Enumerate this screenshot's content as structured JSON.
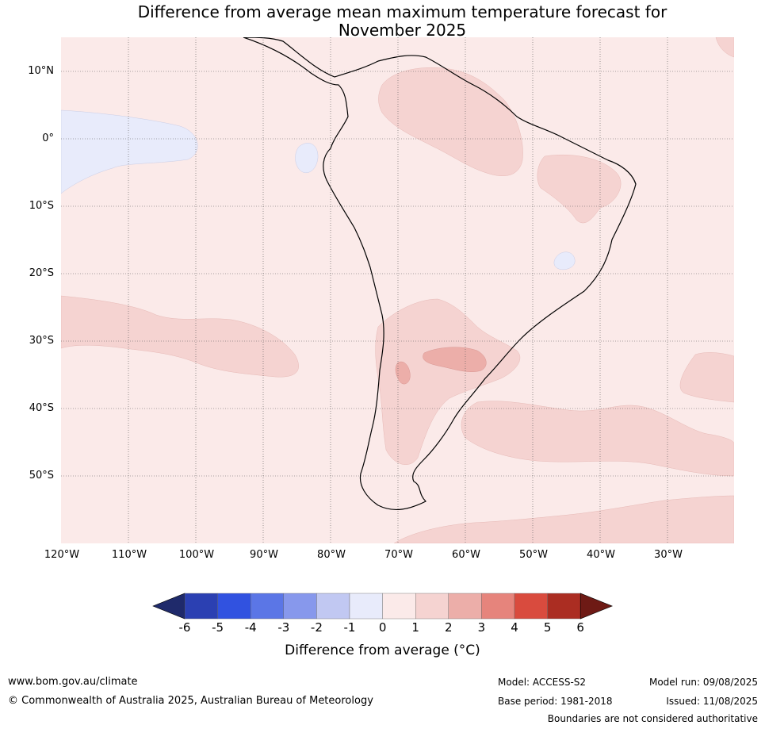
{
  "title": {
    "line1": "Difference from average mean maximum temperature forecast for",
    "line2": "November 2025"
  },
  "map": {
    "lat_labels": [
      "10°N",
      "0°",
      "10°S",
      "20°S",
      "30°S",
      "40°S",
      "50°S"
    ],
    "lon_labels": [
      "120°W",
      "110°W",
      "100°W",
      "90°W",
      "80°W",
      "70°W",
      "60°W",
      "50°W",
      "40°W",
      "30°W"
    ],
    "lat_range": [
      -60,
      15
    ],
    "lon_range": [
      -120,
      -20
    ],
    "gridlines": true,
    "background_class": "0 to 1",
    "regions": [
      {
        "name": "eastern Pacific near equator",
        "class": "-1 to 0"
      },
      {
        "name": "Galapagos area",
        "class": "-1 to 0"
      },
      {
        "name": "Brazilian highlands spot",
        "class": "-1 to 0"
      },
      {
        "name": "South Pacific band",
        "class": "1 to 2"
      },
      {
        "name": "Northern South America",
        "class": "1 to 2"
      },
      {
        "name": "Eastern Brazil",
        "class": "1 to 2"
      },
      {
        "name": "Argentina",
        "class": "1 to 2"
      },
      {
        "name": "South Atlantic band",
        "class": "1 to 2"
      },
      {
        "name": "Southern Ocean band",
        "class": "1 to 2"
      },
      {
        "name": "Central Argentina",
        "class": "2 to 3"
      }
    ]
  },
  "colorbar": {
    "label": "Difference from average (°C)",
    "ticks": [
      "-6",
      "-5",
      "-4",
      "-3",
      "-2",
      "-1",
      "0",
      "1",
      "2",
      "3",
      "4",
      "5",
      "6"
    ],
    "colors": [
      "#1f2a6b",
      "#2b40b2",
      "#3152e0",
      "#5b76e6",
      "#8798ec",
      "#c1c8f2",
      "#e8ebfb",
      "#fbeae9",
      "#f5d3d1",
      "#ecaea9",
      "#e6847c",
      "#d94b3e",
      "#ab2d22",
      "#6e1a15"
    ]
  },
  "footer": {
    "website": "www.bom.gov.au/climate",
    "copyright": "© Commonwealth of Australia 2025, Australian Bureau of Meteorology",
    "model": "Model: ACCESS-S2",
    "base_period": "Base period: 1981-2018",
    "model_run": "Model run: 09/08/2025",
    "issued": "Issued: 11/08/2025",
    "disclaimer": "Boundaries are not considered authoritative"
  }
}
